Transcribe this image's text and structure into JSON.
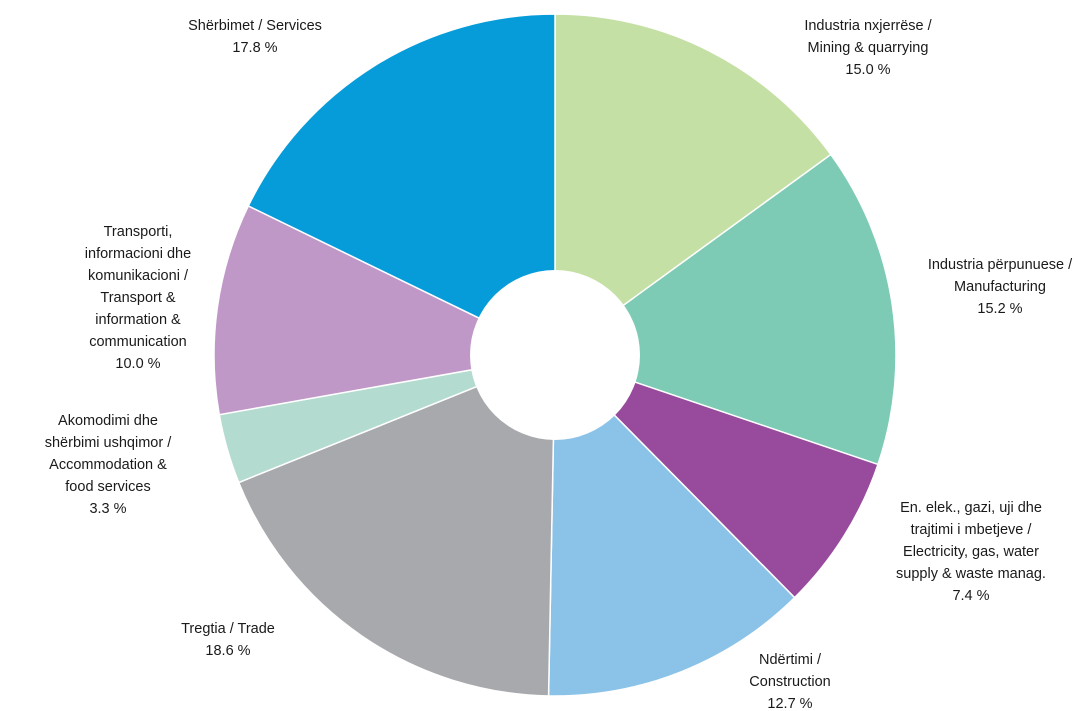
{
  "chart_data": {
    "type": "pie",
    "style": "donut",
    "slices": [
      {
        "label": [
          "Industria nxjerrëse /",
          "Mining & quarrying"
        ],
        "value": 15.0,
        "value_text": "15.0 %",
        "color": "#c5e0a5"
      },
      {
        "label": [
          "Industria përpunuese /",
          "Manufacturing"
        ],
        "value": 15.2,
        "value_text": "15.2 %",
        "color": "#7dcbb4"
      },
      {
        "label": [
          "En. elek., gazi, uji dhe",
          "trajtimi i mbetjeve /",
          "Electricity, gas, water",
          "supply & waste manag."
        ],
        "value": 7.4,
        "value_text": "7.4 %",
        "color": "#984a9c"
      },
      {
        "label": [
          "Ndërtimi /",
          "Construction"
        ],
        "value": 12.7,
        "value_text": "12.7 %",
        "color": "#8bc2e8"
      },
      {
        "label": [
          "Tregtia / Trade"
        ],
        "value": 18.6,
        "value_text": "18.6 %",
        "color": "#a8a9ad"
      },
      {
        "label": [
          "Akomodimi dhe",
          "shërbimi ushqimor /",
          "Accommodation &",
          "food services"
        ],
        "value": 3.3,
        "value_text": "3.3 %",
        "color": "#b3dbd0"
      },
      {
        "label": [
          "Transporti,",
          "informacioni dhe",
          "komunikacioni /",
          "Transport &",
          "information &",
          "communication"
        ],
        "value": 10.0,
        "value_text": "10.0 %",
        "color": "#c098c7"
      },
      {
        "label": [
          "Shërbimet / Services"
        ],
        "value": 17.8,
        "value_text": "17.8 %",
        "color": "#069cda"
      }
    ]
  }
}
